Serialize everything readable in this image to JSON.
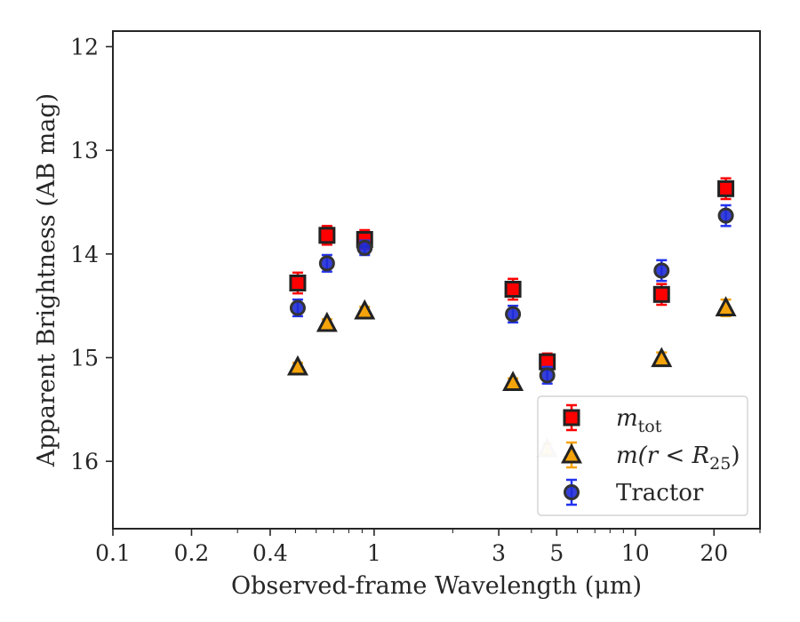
{
  "chart_data": {
    "type": "scatter",
    "xlabel": "Observed-frame Wavelength (μm)",
    "ylabel": "Apparent Brightness (AB mag)",
    "xscale": "log",
    "xlim": [
      0.1,
      30
    ],
    "ylim": [
      16.65,
      11.85
    ],
    "y_inverted": true,
    "x_ticks": [
      {
        "value": 0.1,
        "label": "0.1"
      },
      {
        "value": 0.2,
        "label": "0.2"
      },
      {
        "value": 0.4,
        "label": "0.4"
      },
      {
        "value": 1,
        "label": "1"
      },
      {
        "value": 3,
        "label": "3"
      },
      {
        "value": 5,
        "label": "5"
      },
      {
        "value": 10,
        "label": "10"
      },
      {
        "value": 20,
        "label": "20"
      }
    ],
    "y_ticks": [
      {
        "value": 12,
        "label": "12"
      },
      {
        "value": 13,
        "label": "13"
      },
      {
        "value": 14,
        "label": "14"
      },
      {
        "value": 15,
        "label": "15"
      },
      {
        "value": 16,
        "label": "16"
      }
    ],
    "grid": false,
    "legend_position": "lower-right",
    "series": [
      {
        "name": "m_tot",
        "legend_main": "m",
        "legend_sub": "tot",
        "legend_tail": "",
        "marker": "square",
        "color": "#ff0000",
        "errcolor": "#ff0000",
        "edgecolor": "#222222",
        "points": [
          {
            "x": 0.51,
            "y": 14.28,
            "err": 0.1
          },
          {
            "x": 0.66,
            "y": 13.82,
            "err": 0.09
          },
          {
            "x": 0.92,
            "y": 13.86,
            "err": 0.09
          },
          {
            "x": 3.4,
            "y": 14.34,
            "err": 0.1
          },
          {
            "x": 4.6,
            "y": 15.04,
            "err": 0.08
          },
          {
            "x": 12.6,
            "y": 14.39,
            "err": 0.1
          },
          {
            "x": 22.2,
            "y": 13.37,
            "err": 0.1
          }
        ]
      },
      {
        "name": "m(r<R_25)",
        "legend_main": "m(r < R",
        "legend_sub": "25",
        "legend_tail": ")",
        "marker": "triangle",
        "color": "#f5a30a",
        "errcolor": "#f5a30a",
        "edgecolor": "#222222",
        "points": [
          {
            "x": 0.51,
            "y": 15.09,
            "err": 0.04
          },
          {
            "x": 0.66,
            "y": 14.67,
            "err": 0.04
          },
          {
            "x": 0.92,
            "y": 14.55,
            "err": 0.04
          },
          {
            "x": 3.4,
            "y": 15.24,
            "err": 0.04
          },
          {
            "x": 4.6,
            "y": 15.88,
            "err": 0.05,
            "faded": true
          },
          {
            "x": 12.6,
            "y": 15.01,
            "err": 0.06
          },
          {
            "x": 22.2,
            "y": 14.52,
            "err": 0.08
          }
        ]
      },
      {
        "name": "Tractor",
        "legend_main": "Tractor",
        "legend_sub": "",
        "legend_tail": "",
        "marker": "circle",
        "color": "#1f2bd6",
        "errcolor": "#2233ee",
        "edgecolor": "#333333",
        "points": [
          {
            "x": 0.51,
            "y": 14.52,
            "err": 0.08
          },
          {
            "x": 0.66,
            "y": 14.09,
            "err": 0.08
          },
          {
            "x": 0.92,
            "y": 13.94,
            "err": 0.07
          },
          {
            "x": 3.4,
            "y": 14.58,
            "err": 0.08
          },
          {
            "x": 4.6,
            "y": 15.17,
            "err": 0.08
          },
          {
            "x": 12.6,
            "y": 14.16,
            "err": 0.1
          },
          {
            "x": 22.2,
            "y": 13.63,
            "err": 0.1
          }
        ]
      }
    ]
  }
}
